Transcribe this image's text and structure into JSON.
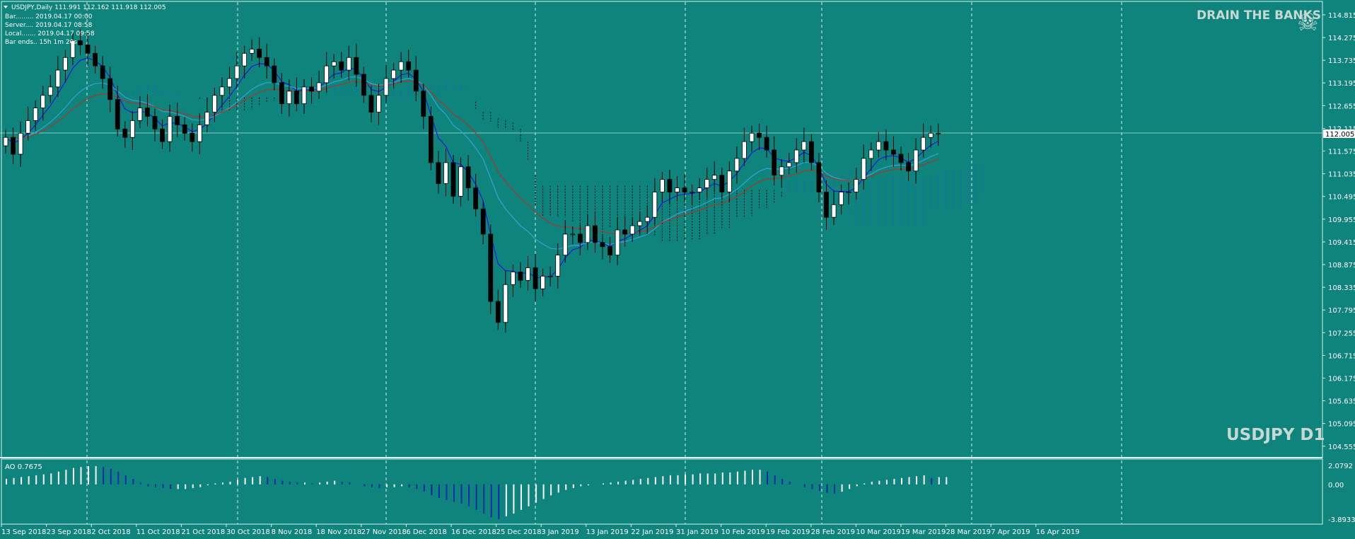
{
  "theme": {
    "background": "#0f847c",
    "bull_candle": "#ffffff",
    "bear_candle": "#000000",
    "ema_fast": "#1a1adc",
    "ema_slow": "#a33a2a",
    "ema_mid": "#36a3d8",
    "cloud_a": "#1e5fd6",
    "cloud_b": "#000000",
    "ao_up": "#ffffff",
    "ao_down": "#0a2aa8",
    "price_line": "#8fc7c0"
  },
  "header": {
    "symbol_line": "USDJPY,Daily  111.991 112.162 111.918 112.005",
    "bar": "Bar......... 2019.04.17 00:00",
    "server": "Server.... 2019.04.17 08:58",
    "local": "Local....... 2019.04.17 09:58",
    "bar_ends": "Bar ends.. 15h 1m 20s"
  },
  "watermarks": {
    "top": "DRAIN THE BANKS",
    "bottom": "USDJPY D1",
    "skull_icon": "☠"
  },
  "current_price": "112.005",
  "price_axis": [
    "114.815",
    "114.275",
    "113.735",
    "113.195",
    "112.655",
    "112.115",
    "111.575",
    "111.035",
    "110.495",
    "109.955",
    "109.415",
    "108.875",
    "108.335",
    "107.795",
    "107.255",
    "106.715",
    "106.175",
    "105.635",
    "105.095",
    "104.555"
  ],
  "ao": {
    "label": "AO 0.7675",
    "axis": [
      "2.0792",
      "0.00",
      "-3.8933"
    ]
  },
  "date_axis": [
    "13 Sep 2018",
    "23 Sep 2018",
    "2 Oct 2018",
    "11 Oct 2018",
    "21 Oct 2018",
    "30 Oct 2018",
    "8 Nov 2018",
    "18 Nov 2018",
    "27 Nov 2018",
    "6 Dec 2018",
    "16 Dec 2018",
    "25 Dec 2018",
    "3 Jan 2019",
    "13 Jan 2019",
    "22 Jan 2019",
    "31 Jan 2019",
    "10 Feb 2019",
    "19 Feb 2019",
    "28 Feb 2019",
    "10 Mar 2019",
    "19 Mar 2019",
    "28 Mar 2019",
    "7 Apr 2019",
    "16 Apr 2019"
  ],
  "chart_data": {
    "type": "candlestick",
    "symbol": "USDJPY",
    "timeframe": "D1",
    "ylim": [
      104.3,
      115.1
    ],
    "closes": [
      111.9,
      111.5,
      112.0,
      112.3,
      112.6,
      112.9,
      113.1,
      113.5,
      113.8,
      114.2,
      114.1,
      113.9,
      113.6,
      113.3,
      112.8,
      112.1,
      111.9,
      112.3,
      112.6,
      112.4,
      112.1,
      111.8,
      112.4,
      112.2,
      112.0,
      111.8,
      112.2,
      112.5,
      112.9,
      113.1,
      113.3,
      113.6,
      113.9,
      114.0,
      113.8,
      113.6,
      113.2,
      112.7,
      113.0,
      112.7,
      113.1,
      113.0,
      113.2,
      113.6,
      113.7,
      113.5,
      113.8,
      113.4,
      112.9,
      112.5,
      112.9,
      113.3,
      113.5,
      113.7,
      113.5,
      113.0,
      112.4,
      111.3,
      110.8,
      111.3,
      110.5,
      111.2,
      110.7,
      110.2,
      109.6,
      108.0,
      107.5,
      108.4,
      108.7,
      108.5,
      108.8,
      108.3,
      108.6,
      108.6,
      109.1,
      109.6,
      109.6,
      109.4,
      109.8,
      109.4,
      109.3,
      109.1,
      109.7,
      109.6,
      109.8,
      109.9,
      110.0,
      110.6,
      110.9,
      110.6,
      110.7,
      110.6,
      110.6,
      110.7,
      110.9,
      111.0,
      110.6,
      111.1,
      111.4,
      111.8,
      112.0,
      111.9,
      111.6,
      111.0,
      111.2,
      111.3,
      111.6,
      111.8,
      111.3,
      110.6,
      110.0,
      110.3,
      110.6,
      110.6,
      110.9,
      111.4,
      111.6,
      111.8,
      111.6,
      111.5,
      111.3,
      111.1,
      111.6,
      111.9,
      112.0,
      112.0
    ],
    "ao_values": [
      0.6,
      0.7,
      0.8,
      0.9,
      1.0,
      1.1,
      1.2,
      1.4,
      1.6,
      1.8,
      1.9,
      2.0,
      2.0,
      1.9,
      1.7,
      1.4,
      1.0,
      0.6,
      0.2,
      -0.2,
      -0.3,
      -0.4,
      -0.5,
      -0.5,
      -0.5,
      -0.4,
      -0.3,
      -0.1,
      0.1,
      0.2,
      0.3,
      0.5,
      0.7,
      0.8,
      0.9,
      0.8,
      0.6,
      0.4,
      0.3,
      0.2,
      0.2,
      0.1,
      0.2,
      0.3,
      0.4,
      0.3,
      0.2,
      0.0,
      -0.2,
      -0.3,
      -0.4,
      -0.3,
      -0.3,
      -0.2,
      -0.3,
      -0.5,
      -0.8,
      -1.2,
      -1.5,
      -1.7,
      -1.9,
      -2.1,
      -2.4,
      -2.8,
      -3.2,
      -3.6,
      -3.8,
      -3.5,
      -3.2,
      -2.8,
      -2.4,
      -2.0,
      -1.6,
      -1.2,
      -0.9,
      -0.6,
      -0.4,
      -0.2,
      -0.1,
      0.0,
      0.1,
      0.2,
      0.3,
      0.4,
      0.5,
      0.6,
      0.7,
      0.8,
      0.9,
      1.0,
      1.0,
      1.1,
      1.1,
      1.2,
      1.2,
      1.2,
      1.3,
      1.3,
      1.4,
      1.5,
      1.6,
      1.6,
      1.4,
      1.0,
      0.6,
      0.3,
      0.0,
      -0.3,
      -0.5,
      -0.7,
      -0.9,
      -1.0,
      -0.8,
      -0.5,
      -0.2,
      0.1,
      0.3,
      0.4,
      0.5,
      0.6,
      0.7,
      0.8,
      0.9,
      1.0,
      0.7,
      0.8,
      0.8
    ]
  }
}
